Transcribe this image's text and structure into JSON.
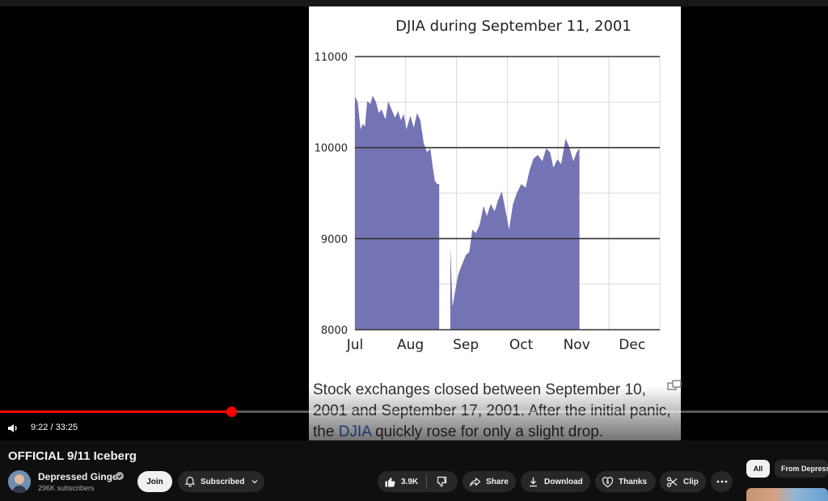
{
  "video": {
    "chart_data": {
      "type": "area",
      "title": "DJIA during September 11, 2001",
      "xlabel": "",
      "ylabel": "",
      "ylim": [
        8000,
        11000
      ],
      "yticks": [
        8000,
        9000,
        10000,
        11000
      ],
      "categories": [
        "Jul",
        "Aug",
        "Sep",
        "Oct",
        "Nov",
        "Dec"
      ],
      "grid": true,
      "gap_note": "markets closed Sep 10–17",
      "series": [
        {
          "color": "#7474b4",
          "segments": [
            [
              {
                "x": 0.0,
                "y": 10560
              },
              {
                "x": 0.05,
                "y": 10500
              },
              {
                "x": 0.1,
                "y": 10200
              },
              {
                "x": 0.14,
                "y": 10260
              },
              {
                "x": 0.18,
                "y": 10230
              },
              {
                "x": 0.22,
                "y": 10510
              },
              {
                "x": 0.28,
                "y": 10480
              },
              {
                "x": 0.32,
                "y": 10570
              },
              {
                "x": 0.38,
                "y": 10500
              },
              {
                "x": 0.43,
                "y": 10380
              },
              {
                "x": 0.48,
                "y": 10420
              },
              {
                "x": 0.55,
                "y": 10310
              },
              {
                "x": 0.6,
                "y": 10510
              },
              {
                "x": 0.66,
                "y": 10420
              },
              {
                "x": 0.72,
                "y": 10330
              },
              {
                "x": 0.78,
                "y": 10400
              },
              {
                "x": 0.83,
                "y": 10300
              },
              {
                "x": 0.88,
                "y": 10370
              },
              {
                "x": 0.93,
                "y": 10200
              },
              {
                "x": 1.0,
                "y": 10350
              },
              {
                "x": 1.06,
                "y": 10220
              },
              {
                "x": 1.12,
                "y": 10380
              },
              {
                "x": 1.18,
                "y": 10300
              },
              {
                "x": 1.24,
                "y": 10050
              },
              {
                "x": 1.3,
                "y": 9950
              },
              {
                "x": 1.36,
                "y": 9990
              },
              {
                "x": 1.4,
                "y": 9800
              },
              {
                "x": 1.44,
                "y": 9640
              },
              {
                "x": 1.48,
                "y": 9600
              },
              {
                "x": 1.52,
                "y": 9600
              }
            ],
            [
              {
                "x": 1.72,
                "y": 8920
              },
              {
                "x": 1.76,
                "y": 8250
              },
              {
                "x": 1.8,
                "y": 8400
              },
              {
                "x": 1.86,
                "y": 8600
              },
              {
                "x": 1.92,
                "y": 8700
              },
              {
                "x": 2.0,
                "y": 8820
              },
              {
                "x": 2.06,
                "y": 8850
              },
              {
                "x": 2.12,
                "y": 9100
              },
              {
                "x": 2.18,
                "y": 9060
              },
              {
                "x": 2.25,
                "y": 9150
              },
              {
                "x": 2.32,
                "y": 9360
              },
              {
                "x": 2.38,
                "y": 9250
              },
              {
                "x": 2.45,
                "y": 9380
              },
              {
                "x": 2.52,
                "y": 9300
              },
              {
                "x": 2.58,
                "y": 9420
              },
              {
                "x": 2.65,
                "y": 9520
              },
              {
                "x": 2.72,
                "y": 9300
              },
              {
                "x": 2.78,
                "y": 9100
              },
              {
                "x": 2.85,
                "y": 9380
              },
              {
                "x": 2.92,
                "y": 9500
              },
              {
                "x": 3.0,
                "y": 9600
              },
              {
                "x": 3.08,
                "y": 9560
              },
              {
                "x": 3.15,
                "y": 9750
              },
              {
                "x": 3.22,
                "y": 9880
              },
              {
                "x": 3.3,
                "y": 9920
              },
              {
                "x": 3.38,
                "y": 9850
              },
              {
                "x": 3.45,
                "y": 9990
              },
              {
                "x": 3.52,
                "y": 9950
              },
              {
                "x": 3.58,
                "y": 9780
              },
              {
                "x": 3.65,
                "y": 9870
              },
              {
                "x": 3.72,
                "y": 9820
              },
              {
                "x": 3.8,
                "y": 10100
              },
              {
                "x": 3.87,
                "y": 10000
              },
              {
                "x": 3.94,
                "y": 9850
              },
              {
                "x": 4.0,
                "y": 9950
              },
              {
                "x": 4.05,
                "y": 9990
              }
            ]
          ]
        }
      ]
    },
    "caption": {
      "before_link": "Stock exchanges closed between September 10, 2001 and September 17, 2001. After the initial panic, the ",
      "link": "DJIA",
      "after_link": " quickly rose for only a slight drop."
    },
    "progress_fraction": 0.2797,
    "time_display": "9:22 / 33:25"
  },
  "meta": {
    "title": "OFFICIAL 9/11 Iceberg",
    "channel_name": "Depressed Ginger",
    "subscribers": "296K subscribers",
    "join_label": "Join",
    "subscribed_label": "Subscribed",
    "like_count": "3.9K",
    "share_label": "Share",
    "download_label": "Download",
    "thanks_label": "Thanks",
    "clip_label": "Clip"
  },
  "sidebar": {
    "chips": [
      "All",
      "From Depressed Ginger"
    ]
  },
  "icons": {
    "volume": "volume-icon",
    "bell": "bell-icon",
    "like": "thumbs-up-icon",
    "dislike": "thumbs-down-icon",
    "share": "share-icon",
    "download": "download-icon",
    "thanks": "thanks-icon",
    "clip": "scissors-icon",
    "more": "more-icon"
  },
  "colors": {
    "progress": "#ff0000",
    "area_fill": "#7474b4",
    "link": "#3366cc"
  }
}
